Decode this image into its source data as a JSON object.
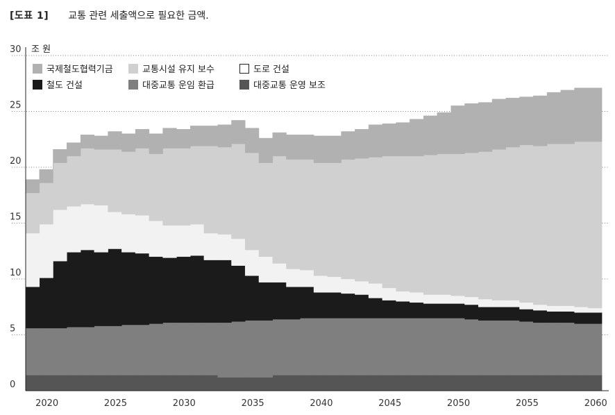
{
  "header": {
    "figure_no": "[도표 1]",
    "title": "교통 관련 세출액으로 필요한 금액."
  },
  "chart_data": {
    "type": "area",
    "stacked": true,
    "step": true,
    "unit_label": "조 원",
    "ylim": [
      0,
      30
    ],
    "yticks": [
      0,
      5,
      10,
      15,
      20,
      25,
      30
    ],
    "xlim": [
      2018.5,
      2061
    ],
    "xticks": [
      2020,
      2025,
      2030,
      2035,
      2040,
      2045,
      2050,
      2055,
      2060
    ],
    "grid": "dotted-horizontal",
    "legend_position": "top-left",
    "x": [
      2019,
      2020,
      2021,
      2022,
      2023,
      2024,
      2025,
      2026,
      2027,
      2028,
      2029,
      2030,
      2031,
      2032,
      2033,
      2034,
      2035,
      2036,
      2037,
      2038,
      2039,
      2040,
      2041,
      2042,
      2043,
      2044,
      2045,
      2046,
      2047,
      2048,
      2049,
      2050,
      2051,
      2052,
      2053,
      2054,
      2055,
      2056,
      2057,
      2058,
      2059,
      2060
    ],
    "series": [
      {
        "name": "대중교통 운영 보조",
        "color": "#555555",
        "values": [
          1.4,
          1.4,
          1.4,
          1.4,
          1.4,
          1.4,
          1.4,
          1.4,
          1.4,
          1.4,
          1.4,
          1.4,
          1.4,
          1.4,
          1.2,
          1.2,
          1.2,
          1.2,
          1.4,
          1.4,
          1.4,
          1.4,
          1.4,
          1.4,
          1.4,
          1.4,
          1.4,
          1.4,
          1.4,
          1.4,
          1.4,
          1.4,
          1.4,
          1.4,
          1.4,
          1.4,
          1.4,
          1.4,
          1.4,
          1.4,
          1.4,
          1.4
        ]
      },
      {
        "name": "대중교통 운임 환급",
        "color": "#7f7f80",
        "values": [
          4.2,
          4.2,
          4.2,
          4.3,
          4.3,
          4.4,
          4.4,
          4.5,
          4.5,
          4.6,
          4.7,
          4.7,
          4.7,
          4.7,
          4.9,
          5.0,
          5.1,
          5.1,
          5.0,
          5.0,
          5.1,
          5.1,
          5.1,
          5.1,
          5.1,
          5.1,
          5.1,
          5.1,
          5.1,
          5.1,
          5.1,
          5.1,
          5.0,
          4.9,
          4.9,
          4.9,
          4.8,
          4.7,
          4.7,
          4.7,
          4.6,
          4.6
        ]
      },
      {
        "name": "철도 건설",
        "color": "#1b1b1b",
        "values": [
          3.7,
          4.5,
          6.0,
          6.7,
          6.9,
          6.6,
          6.9,
          6.5,
          6.4,
          6.0,
          5.8,
          5.9,
          6.0,
          5.6,
          5.6,
          5.0,
          4.0,
          3.4,
          3.3,
          2.9,
          2.8,
          2.3,
          2.3,
          2.2,
          2.1,
          1.8,
          1.6,
          1.5,
          1.4,
          1.3,
          1.3,
          1.3,
          1.3,
          1.2,
          1.2,
          1.2,
          1.1,
          1.1,
          1.0,
          1.0,
          1.0,
          1.0
        ]
      },
      {
        "name": "도로 건설",
        "color": "#f2f2f2",
        "values": [
          4.8,
          4.8,
          4.6,
          4.1,
          4.1,
          4.2,
          3.3,
          3.4,
          3.4,
          3.2,
          2.9,
          2.8,
          2.8,
          2.4,
          2.3,
          2.4,
          2.3,
          2.3,
          1.7,
          1.6,
          1.5,
          1.5,
          1.4,
          1.3,
          1.2,
          1.3,
          1.1,
          0.9,
          0.9,
          0.8,
          0.8,
          0.7,
          0.7,
          0.7,
          0.6,
          0.6,
          0.6,
          0.5,
          0.5,
          0.5,
          0.5,
          0.4
        ]
      },
      {
        "name": "교통시설 유지 보수",
        "color": "#d0d0d1",
        "values": [
          3.6,
          3.7,
          4.2,
          4.5,
          5.0,
          5.0,
          5.6,
          5.6,
          6.0,
          6.0,
          6.9,
          6.9,
          7.0,
          7.8,
          7.8,
          8.5,
          8.7,
          8.4,
          9.6,
          9.8,
          9.9,
          10.1,
          10.2,
          10.7,
          11.0,
          11.3,
          11.8,
          12.1,
          12.2,
          12.5,
          12.6,
          12.7,
          12.9,
          13.2,
          13.5,
          13.7,
          14.1,
          14.2,
          14.5,
          14.5,
          14.8,
          14.9
        ]
      },
      {
        "name": "국제철도협력기금",
        "color": "#b1b1b2",
        "values": [
          1.2,
          1.2,
          1.2,
          1.2,
          1.2,
          1.2,
          1.6,
          1.6,
          1.7,
          1.8,
          1.8,
          1.7,
          1.8,
          1.8,
          2.0,
          2.1,
          2.2,
          2.2,
          2.1,
          2.2,
          2.2,
          2.4,
          2.4,
          2.5,
          2.6,
          2.9,
          2.9,
          3.0,
          3.3,
          3.5,
          3.7,
          4.3,
          4.4,
          4.4,
          4.5,
          4.4,
          4.3,
          4.5,
          4.6,
          4.8,
          4.8,
          4.8
        ]
      }
    ],
    "legend_order": [
      "국제철도협력기금",
      "교통시설 유지 보수",
      "도로 건설",
      "철도 건설",
      "대중교통 운임 환급",
      "대중교통 운영 보조"
    ]
  }
}
